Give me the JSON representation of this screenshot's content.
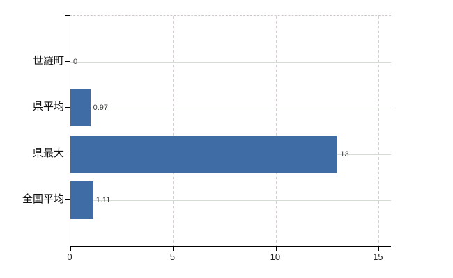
{
  "chart_data": {
    "type": "bar",
    "orientation": "horizontal",
    "categories": [
      "世羅町",
      "県平均",
      "県最大",
      "全国平均"
    ],
    "values": [
      0,
      0.97,
      13,
      1.11
    ],
    "value_labels": [
      "0",
      "0.97",
      "13",
      "1.11"
    ],
    "series": [
      {
        "name": "",
        "values": [
          0,
          0.97,
          13,
          1.11
        ]
      }
    ],
    "x_tick_labels": [
      "0",
      "5",
      "10",
      "15"
    ],
    "x_tick_values": [
      0,
      5,
      10,
      15
    ],
    "xlim": [
      0,
      15.6
    ],
    "xlabel": "",
    "ylabel": "",
    "legend_position": "none",
    "grid": {
      "horizontal_style": "solid",
      "vertical_style": "dashed",
      "plot_top_border_style": "dashed"
    }
  },
  "colors": {
    "bar": "#3f6ca4",
    "axis": "#000000",
    "grid_horizontal": "#d5dcd5",
    "grid_vertical": "#d6d0d6",
    "plot_top_border": "#cfc9cf",
    "value_label_text": "#3a3a3a",
    "tick_label_text": "#222222",
    "category_label_text": "#111111",
    "background": "#ffffff"
  }
}
